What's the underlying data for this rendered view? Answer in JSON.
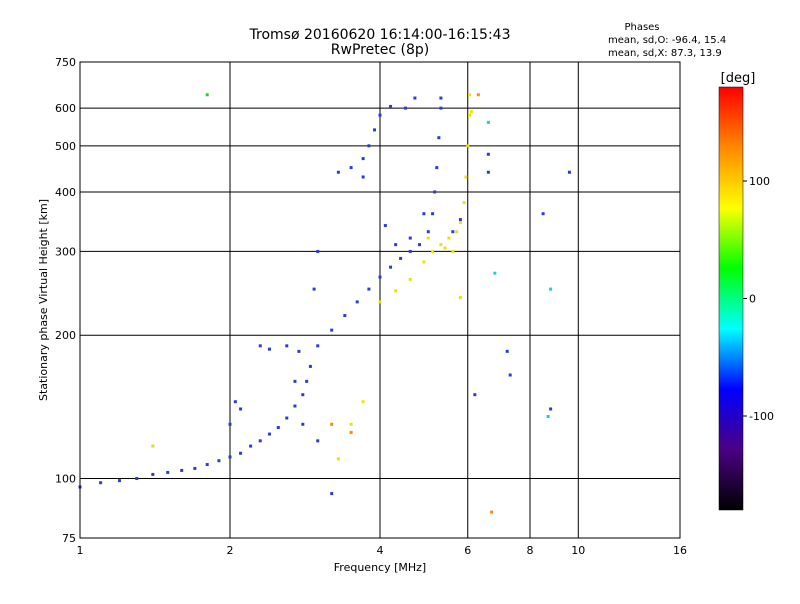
{
  "chart_data": {
    "type": "scatter",
    "title": "Tromsø 20160620 16:14:00-16:15:43",
    "subtitle": "RwPretec (8p)",
    "xlabel": "Frequency [MHz]",
    "ylabel": "Stationary phase Virtual Height [km]",
    "x_scale": "log",
    "y_scale": "log",
    "xlim": [
      1,
      16
    ],
    "ylim": [
      75,
      750
    ],
    "x_ticks": [
      1,
      2,
      4,
      6,
      8,
      10,
      16
    ],
    "y_ticks": [
      75,
      100,
      200,
      300,
      400,
      500,
      600,
      750
    ],
    "x_tick_labels": [
      "1",
      "2",
      "4",
      "6",
      "8",
      "10",
      "16"
    ],
    "y_tick_labels": [
      "75",
      "100",
      "200",
      "300",
      "400",
      "500",
      "600",
      "750"
    ],
    "grid": true,
    "phase_stats": {
      "heading": "Phases",
      "o_line": "mean, sd,O: -96.4, 15.4",
      "x_line": "mean, sd,X:  87.3, 13.9"
    },
    "colorbar": {
      "label": "[deg]",
      "range": [
        -180,
        180
      ],
      "ticks": [
        100,
        0,
        -100
      ],
      "tick_labels": [
        "100",
        "0",
        "-100"
      ],
      "colors": [
        "#ff0000",
        "#ff8800",
        "#ffff00",
        "#00ff00",
        "#00ffff",
        "#0000ff",
        "#4b0082",
        "#000000"
      ]
    },
    "series": [
      {
        "mode": "O",
        "phase": -96.4,
        "color": "#2a3cd8",
        "points": [
          [
            1.0,
            96
          ],
          [
            1.1,
            98
          ],
          [
            1.2,
            99
          ],
          [
            1.3,
            100
          ],
          [
            1.4,
            102
          ],
          [
            1.5,
            103
          ],
          [
            1.6,
            104
          ],
          [
            1.7,
            105
          ],
          [
            1.8,
            107
          ],
          [
            1.9,
            109
          ],
          [
            2.0,
            111
          ],
          [
            2.1,
            113
          ],
          [
            2.2,
            117
          ],
          [
            2.3,
            120
          ],
          [
            2.4,
            124
          ],
          [
            2.5,
            128
          ],
          [
            2.6,
            134
          ],
          [
            2.7,
            142
          ],
          [
            2.8,
            150
          ],
          [
            2.85,
            160
          ],
          [
            2.9,
            172
          ],
          [
            3.0,
            190
          ],
          [
            3.2,
            205
          ],
          [
            3.4,
            220
          ],
          [
            3.6,
            235
          ],
          [
            3.8,
            250
          ],
          [
            4.0,
            265
          ],
          [
            4.2,
            278
          ],
          [
            4.4,
            290
          ],
          [
            4.6,
            300
          ],
          [
            4.8,
            310
          ],
          [
            5.0,
            330
          ],
          [
            5.1,
            360
          ],
          [
            5.15,
            400
          ],
          [
            5.2,
            450
          ],
          [
            5.25,
            520
          ],
          [
            5.3,
            600
          ],
          [
            5.3,
            630
          ],
          [
            3.3,
            440
          ],
          [
            3.5,
            450
          ],
          [
            3.7,
            470
          ],
          [
            3.8,
            500
          ],
          [
            3.9,
            540
          ],
          [
            4.0,
            580
          ],
          [
            4.2,
            605
          ],
          [
            4.5,
            600
          ],
          [
            4.7,
            630
          ],
          [
            2.0,
            130
          ],
          [
            2.05,
            145
          ],
          [
            2.1,
            140
          ],
          [
            2.3,
            190
          ],
          [
            2.4,
            187
          ],
          [
            2.6,
            190
          ],
          [
            2.75,
            185
          ],
          [
            2.95,
            250
          ],
          [
            3.0,
            300
          ],
          [
            2.7,
            160
          ],
          [
            2.8,
            130
          ],
          [
            3.0,
            120
          ],
          [
            3.7,
            430
          ],
          [
            4.1,
            340
          ],
          [
            4.3,
            310
          ],
          [
            4.6,
            320
          ],
          [
            4.9,
            360
          ],
          [
            5.6,
            330
          ],
          [
            5.8,
            350
          ],
          [
            6.2,
            150
          ],
          [
            6.6,
            480
          ],
          [
            6.6,
            440
          ],
          [
            7.2,
            185
          ],
          [
            7.3,
            165
          ],
          [
            8.5,
            360
          ],
          [
            9.6,
            440
          ],
          [
            8.8,
            140
          ],
          [
            3.2,
            93
          ]
        ]
      },
      {
        "mode": "X",
        "phase": 87.3,
        "color": "#e6e600",
        "points": [
          [
            3.3,
            110
          ],
          [
            3.5,
            130
          ],
          [
            3.7,
            145
          ],
          [
            4.0,
            235
          ],
          [
            4.3,
            248
          ],
          [
            4.6,
            262
          ],
          [
            4.9,
            285
          ],
          [
            5.1,
            300
          ],
          [
            5.3,
            310
          ],
          [
            5.5,
            320
          ],
          [
            5.7,
            330
          ],
          [
            5.8,
            345
          ],
          [
            5.9,
            380
          ],
          [
            5.95,
            430
          ],
          [
            6.0,
            500
          ],
          [
            6.05,
            580
          ],
          [
            6.05,
            640
          ],
          [
            5.0,
            320
          ],
          [
            5.4,
            305
          ],
          [
            5.6,
            300
          ],
          [
            6.1,
            590
          ],
          [
            5.8,
            240
          ]
        ]
      }
    ],
    "extra_points": [
      {
        "x": 1.8,
        "y": 640,
        "color": "#22cc22"
      },
      {
        "x": 1.4,
        "y": 117,
        "color": "#dddd22"
      },
      {
        "x": 3.5,
        "y": 125,
        "color": "#ff8800"
      },
      {
        "x": 3.2,
        "y": 130,
        "color": "#ff8800"
      },
      {
        "x": 6.3,
        "y": 640,
        "color": "#ff8800"
      },
      {
        "x": 6.7,
        "y": 85,
        "color": "#ff8800"
      },
      {
        "x": 6.6,
        "y": 560,
        "color": "#22cccc"
      },
      {
        "x": 6.8,
        "y": 270,
        "color": "#22cccc"
      },
      {
        "x": 8.8,
        "y": 250,
        "color": "#22cccc"
      },
      {
        "x": 8.7,
        "y": 135,
        "color": "#22cccc"
      }
    ]
  }
}
